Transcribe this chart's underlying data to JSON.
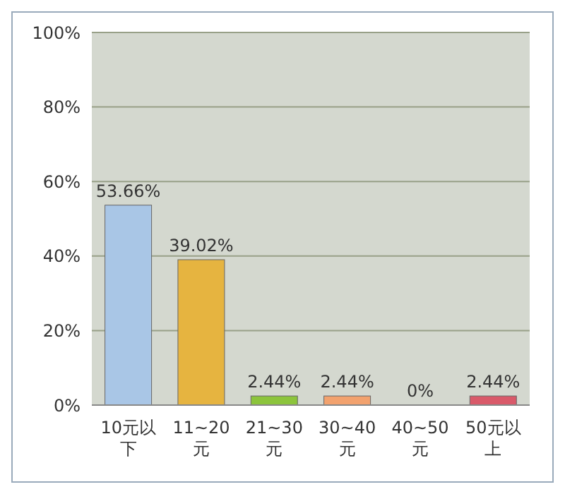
{
  "chart_data": {
    "type": "bar",
    "categories": [
      "10元以下",
      "11~20元",
      "21~30元",
      "30~40元",
      "40~50元",
      "50元以上"
    ],
    "values": [
      53.66,
      39.02,
      2.44,
      2.44,
      0,
      2.44
    ],
    "colors": [
      "#a9c6e6",
      "#e6b440",
      "#8cc43c",
      "#f2a26e",
      "#2aa3ab",
      "#d95a6a"
    ],
    "value_labels": [
      "53.66%",
      "39.02%",
      "2.44%",
      "2.44%",
      "0%",
      "2.44%"
    ],
    "ylim": [
      0,
      100
    ],
    "yticks": [
      {
        "value": 0,
        "label": "0%"
      },
      {
        "value": 20,
        "label": "20%"
      },
      {
        "value": 40,
        "label": "40%"
      },
      {
        "value": 60,
        "label": "60%"
      },
      {
        "value": 80,
        "label": "80%"
      },
      {
        "value": 100,
        "label": "100%"
      }
    ],
    "grid": "y"
  }
}
